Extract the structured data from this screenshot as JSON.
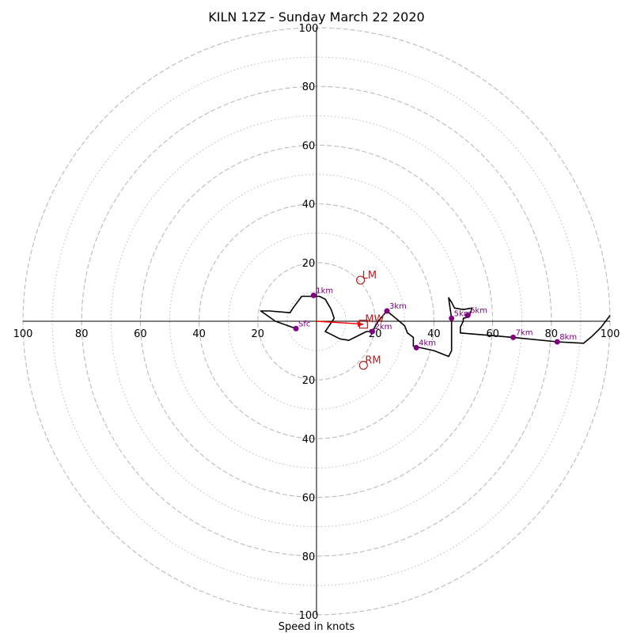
{
  "chart_data": {
    "type": "hodograph",
    "title": "KILN 12Z - Sunday March 22 2020",
    "xlabel": "Speed in knots",
    "units": "knots",
    "range": [
      -100,
      100
    ],
    "rings_major": [
      20,
      40,
      60,
      80,
      100
    ],
    "rings_minor": [
      10,
      30,
      50,
      70,
      90
    ],
    "ticks": [
      {
        "value": 100,
        "label": "100"
      },
      {
        "value": 80,
        "label": "80"
      },
      {
        "value": 60,
        "label": "60"
      },
      {
        "value": 40,
        "label": "40"
      },
      {
        "value": 20,
        "label": "20"
      }
    ],
    "profile": [
      [
        -7,
        -2.5
      ],
      [
        -14,
        0
      ],
      [
        -19,
        3.5
      ],
      [
        -16,
        3.5
      ],
      [
        -9,
        2.9
      ],
      [
        -8,
        4.5
      ],
      [
        -5,
        8.5
      ],
      [
        1,
        8.5
      ],
      [
        3,
        7.5
      ],
      [
        5,
        4
      ],
      [
        6,
        1
      ],
      [
        4,
        -2
      ],
      [
        3,
        -3.5
      ],
      [
        5,
        -4.5
      ],
      [
        8,
        -6
      ],
      [
        11,
        -6.5
      ],
      [
        14,
        -5
      ],
      [
        17,
        -3.5
      ],
      [
        19,
        -3.5
      ],
      [
        21,
        0
      ],
      [
        24,
        3.5
      ],
      [
        27,
        1
      ],
      [
        30,
        -1.5
      ],
      [
        31,
        -4
      ],
      [
        33,
        -5.5
      ],
      [
        33,
        -8.5
      ],
      [
        40,
        -10
      ],
      [
        45,
        -12
      ],
      [
        46,
        -10
      ],
      [
        46,
        -6
      ],
      [
        46,
        0
      ],
      [
        46,
        1
      ],
      [
        45.5,
        4.5
      ],
      [
        45,
        8
      ],
      [
        46,
        6.5
      ],
      [
        47,
        4.5
      ],
      [
        50,
        4
      ],
      [
        53,
        4.5
      ],
      [
        52,
        1.5
      ],
      [
        50,
        1
      ],
      [
        50,
        0
      ],
      [
        49,
        -2
      ],
      [
        49,
        -4
      ],
      [
        67,
        -5.5
      ],
      [
        82,
        -7
      ],
      [
        91,
        -7.5
      ],
      [
        94,
        -5
      ],
      [
        97,
        -2
      ],
      [
        100,
        2
      ]
    ],
    "height_markers": [
      {
        "label": "Sfc",
        "x": -7,
        "y": -2.5
      },
      {
        "label": "1km",
        "x": -1,
        "y": 8.8
      },
      {
        "label": "2km",
        "x": 19,
        "y": -3.5
      },
      {
        "label": "3km",
        "x": 24,
        "y": 3.5
      },
      {
        "label": "4km",
        "x": 34,
        "y": -9
      },
      {
        "label": "5km",
        "x": 46,
        "y": 1
      },
      {
        "label": "6km",
        "x": 51.5,
        "y": 2
      },
      {
        "label": "7km",
        "x": 67,
        "y": -5.5
      },
      {
        "label": "8km",
        "x": 82,
        "y": -7
      }
    ],
    "storm_motion": [
      {
        "label": "LM",
        "x": 15,
        "y": 14,
        "marker": "circle"
      },
      {
        "label": "MW",
        "x": 16,
        "y": -1,
        "marker": "square"
      },
      {
        "label": "RM",
        "x": 16,
        "y": -15,
        "marker": "circle"
      }
    ],
    "shear_vector": {
      "from": [
        0,
        0
      ],
      "to": [
        16,
        -1
      ]
    },
    "colors": {
      "profile": "#000000",
      "markers": "#800080",
      "storm_motion": "#b22222",
      "shear_vector": "#ff0000",
      "grid": "#bbbbbb"
    }
  }
}
